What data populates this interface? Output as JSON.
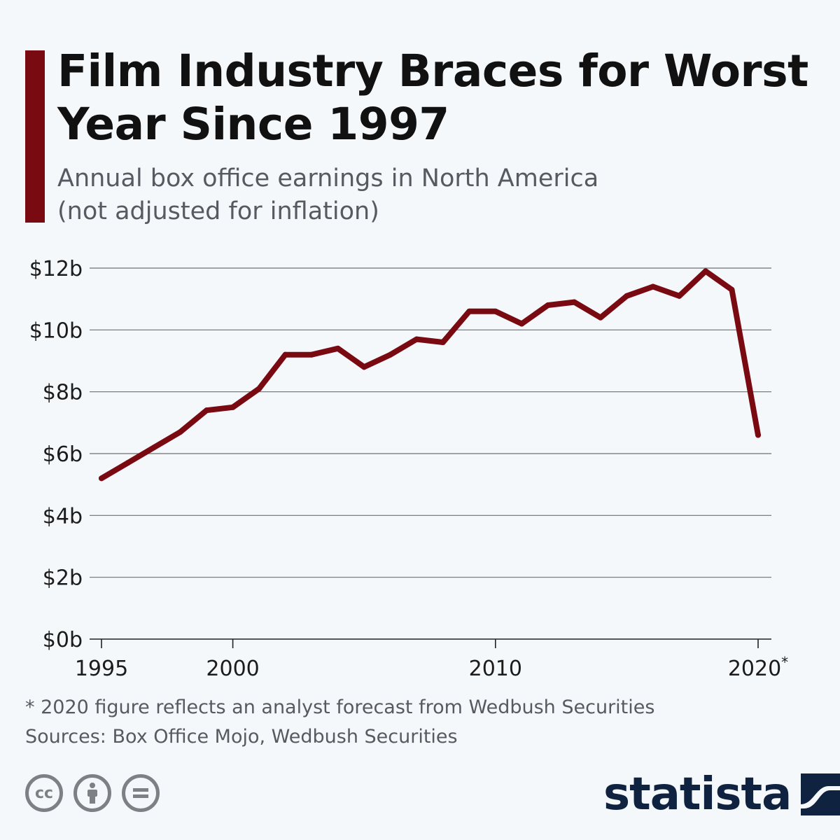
{
  "title": "Film Industry Braces for Worst Year Since 1997",
  "subtitle_lines": [
    "Annual box office earnings in North America",
    "(not adjusted for inflation)"
  ],
  "colors": {
    "accent": "#7a0a12",
    "line": "#7a0a12",
    "grid": "#6f6f6f",
    "brand": "#0f2340"
  },
  "chart_data": {
    "type": "line",
    "title": "Film Industry Braces for Worst Year Since 1997",
    "subtitle": "Annual box office earnings in North America (not adjusted for inflation)",
    "x": [
      1995,
      1996,
      1997,
      1998,
      1999,
      2000,
      2001,
      2002,
      2003,
      2004,
      2005,
      2006,
      2007,
      2008,
      2009,
      2010,
      2011,
      2012,
      2013,
      2014,
      2015,
      2016,
      2017,
      2018,
      2019,
      2020
    ],
    "series": [
      {
        "values": [
          5.2,
          5.7,
          6.2,
          6.7,
          7.4,
          7.5,
          8.1,
          9.2,
          9.2,
          9.4,
          8.8,
          9.2,
          9.7,
          9.6,
          10.6,
          10.6,
          10.2,
          10.8,
          10.9,
          10.4,
          11.1,
          11.4,
          11.1,
          11.9,
          11.3,
          6.6
        ]
      }
    ],
    "xlim": [
      1995,
      2020
    ],
    "ylim": [
      0,
      12
    ],
    "y_ticks": [
      0,
      2,
      4,
      6,
      8,
      10,
      12
    ],
    "y_tick_labels": [
      "$0b",
      "$2b",
      "$4b",
      "$6b",
      "$8b",
      "$10b",
      "$12b"
    ],
    "x_ticks": [
      1995,
      2000,
      2010,
      2020
    ],
    "x_tick_labels": [
      "1995",
      "2000",
      "2010",
      "2020*"
    ],
    "grid": true
  },
  "footnote": "* 2020 figure reflects an analyst forecast from Wedbush Securities",
  "sources": "Sources: Box Office Mojo, Wedbush Securities",
  "license_icons": [
    "creative-commons-icon",
    "attribution-icon",
    "no-derivatives-icon"
  ],
  "brand": {
    "name": "statista",
    "icon": "statista-logo-icon"
  }
}
